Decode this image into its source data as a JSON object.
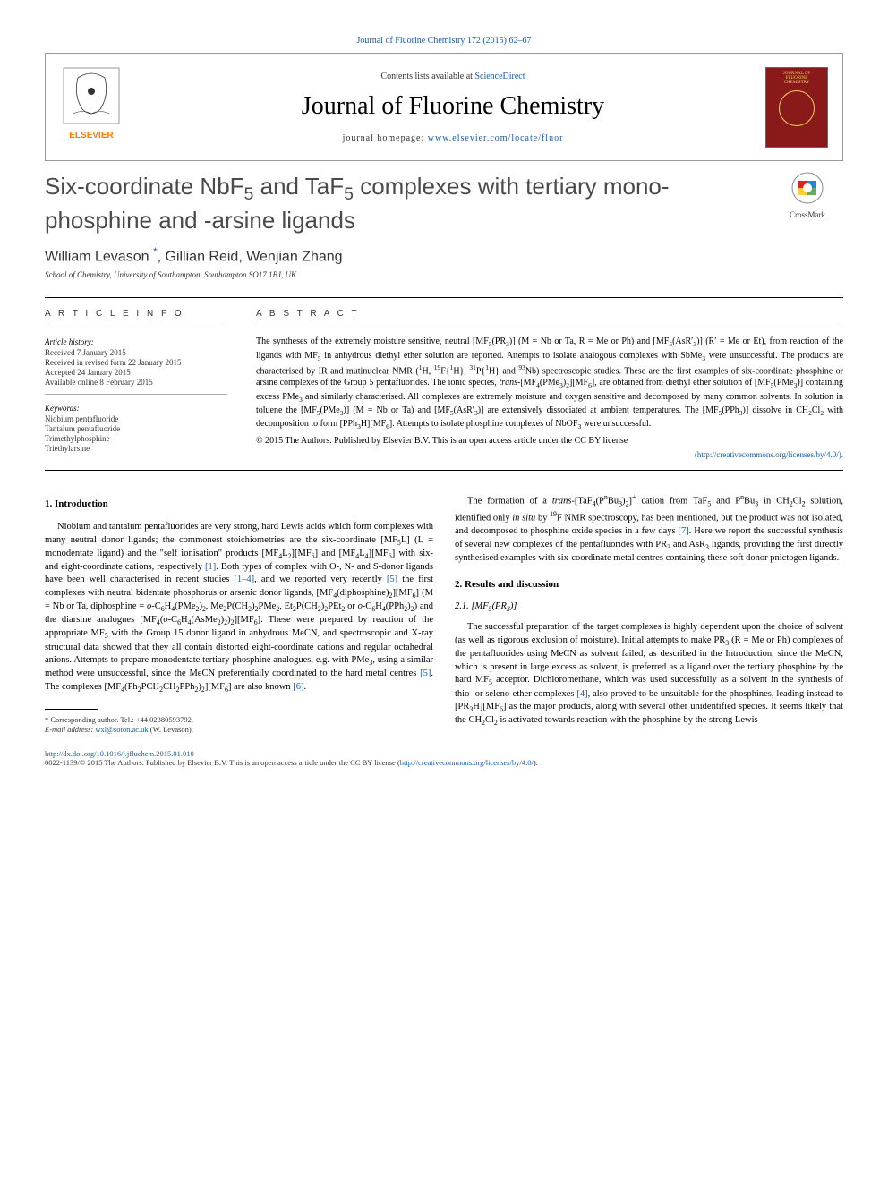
{
  "header": {
    "top_link": "Journal of Fluorine Chemistry 172 (2015) 62–67",
    "contents_line_prefix": "Contents lists available at ",
    "contents_line_link": "ScienceDirect",
    "journal_name": "Journal of Fluorine Chemistry",
    "homepage_prefix": "journal homepage: ",
    "homepage_url": "www.elsevier.com/locate/fluor",
    "publisher_name": "ELSEVIER",
    "cover_label_1": "JOURNAL OF",
    "cover_label_2": "FLUORINE",
    "cover_label_3": "CHEMISTRY"
  },
  "crossmark_label": "CrossMark",
  "title_html": "Six-coordinate NbF<sub>5</sub> and TaF<sub>5</sub> complexes with tertiary mono-phosphine and -arsine ligands",
  "authors_html": "William Levason <sup class=\"asterisk\">*</sup>, Gillian Reid, Wenjian Zhang",
  "affiliation": "School of Chemistry, University of Southampton, Southampton SO17 1BJ, UK",
  "article_info": {
    "heading": "A R T I C L E   I N F O",
    "history_label": "Article history:",
    "received": "Received 7 January 2015",
    "revised": "Received in revised form 22 January 2015",
    "accepted": "Accepted 24 January 2015",
    "online": "Available online 8 February 2015",
    "keywords_label": "Keywords:",
    "keywords": [
      "Niobium pentafluoride",
      "Tantalum pentafluoride",
      "Trimethylphosphine",
      "Triethylarsine"
    ]
  },
  "abstract": {
    "heading": "A B S T R A C T",
    "text_html": "The syntheses of the extremely moisture sensitive, neutral [MF<sub>5</sub>(PR<sub>3</sub>)] (M = Nb or Ta, R = Me or Ph) and [MF<sub>5</sub>(AsR′<sub>3</sub>)] (R′ = Me or Et), from reaction of the ligands with MF<sub>5</sub> in anhydrous diethyl ether solution are reported. Attempts to isolate analogous complexes with SbMe<sub>3</sub> were unsuccessful. The products are characterised by IR and mutinuclear NMR (<sup>1</sup>H, <sup>19</sup>F{<sup>1</sup>H}, <sup>31</sup>P{<sup>1</sup>H} and <sup>93</sup>Nb) spectroscopic studies. These are the first examples of six-coordinate phosphine or arsine complexes of the Group 5 pentafluorides. The ionic species, <i>trans</i>-[MF<sub>4</sub>(PMe<sub>3</sub>)<sub>2</sub>][MF<sub>6</sub>], are obtained from diethyl ether solution of [MF<sub>5</sub>(PMe<sub>3</sub>)] containing excess PMe<sub>3</sub> and similarly characterised. All complexes are extremely moisture and oxygen sensitive and decomposed by many common solvents. In solution in toluene the [MF<sub>5</sub>(PMe<sub>3</sub>)] (M = Nb or Ta) and [MF<sub>5</sub>(AsR′<sub>3</sub>)] are extensively dissociated at ambient temperatures. The [MF<sub>5</sub>(PPh<sub>3</sub>)] dissolve in CH<sub>2</sub>Cl<sub>2</sub> with decomposition to form [PPh<sub>3</sub>H][MF<sub>6</sub>]. Attempts to isolate phosphine complexes of NbOF<sub>3</sub> were unsuccessful.",
    "copyright": "© 2015 The Authors. Published by Elsevier B.V. This is an open access article under the CC BY license",
    "license_url": "(http://creativecommons.org/licenses/by/4.0/)."
  },
  "sections": {
    "intro_heading": "1. Introduction",
    "intro_p1_html": "Niobium and tantalum pentafluorides are very strong, hard Lewis acids which form complexes with many neutral donor ligands; the commonest stoichiometries are the six-coordinate [MF<sub>5</sub>L] (L = monodentate ligand) and the \"self ionisation\" products [MF<sub>4</sub>L<sub>2</sub>][MF<sub>6</sub>] and [MF<sub>4</sub>L<sub>4</sub>][MF<sub>6</sub>] with six- and eight-coordinate cations, respectively <span class=\"ref-link\">[1]</span>. Both types of complex with O-, N- and S-donor ligands have been well characterised in recent studies <span class=\"ref-link\">[1–4]</span>, and we reported very recently <span class=\"ref-link\">[5]</span> the first complexes with neutral bidentate phosphorus or arsenic donor ligands, [MF<sub>4</sub>(diphosphine)<sub>2</sub>][MF<sub>6</sub>] (M = Nb or Ta, diphosphine = <i>o</i>-C<sub>6</sub>H<sub>4</sub>(PMe<sub>2</sub>)<sub>2</sub>, Me<sub>2</sub>P(CH<sub>2</sub>)<sub>2</sub>PMe<sub>2</sub>, Et<sub>2</sub>P(CH<sub>2</sub>)<sub>2</sub>PEt<sub>2</sub> or <i>o</i>-C<sub>6</sub>H<sub>4</sub>(PPh<sub>2</sub>)<sub>2</sub>) and the diarsine analogues [MF<sub>4</sub>(<i>o</i>-C<sub>6</sub>H<sub>4</sub>(AsMe<sub>2</sub>)<sub>2</sub>)<sub>2</sub>][MF<sub>6</sub>]. These were prepared by reaction of the appropriate MF<sub>5</sub> with the Group 15 donor ligand in anhydrous MeCN, and spectroscopic and X-ray structural data showed that they all contain distorted eight-coordinate cations and regular octahedral anions. Attempts to prepare monodentate tertiary phosphine analogues, e.g. with PMe<sub>3</sub>, using a similar method were unsuccessful, since the MeCN preferentially coordinated to the hard metal centres <span class=\"ref-link\">[5]</span>. The complexes [MF<sub>4</sub>(Ph<sub>2</sub>PCH<sub>2</sub>CH<sub>2</sub>PPh<sub>2</sub>)<sub>2</sub>][MF<sub>6</sub>] are also known <span class=\"ref-link\">[6]</span>.",
    "intro_p2_html": "The formation of a <i>trans</i>-[TaF<sub>4</sub>(P<sup>n</sup>Bu<sub>3</sub>)<sub>2</sub>]<sup>+</sup> cation from TaF<sub>5</sub> and P<sup>n</sup>Bu<sub>3</sub> in CH<sub>2</sub>Cl<sub>2</sub> solution, identified only <i>in situ</i> by <sup>19</sup>F NMR spectroscopy, has been mentioned, but the product was not isolated, and decomposed to phosphine oxide species in a few days <span class=\"ref-link\">[7]</span>. Here we report the successful synthesis of several new complexes of the pentafluorides with PR<sub>3</sub> and AsR<sub>3</sub> ligands, providing the first directly synthesised examples with six-coordinate metal centres containing these soft donor pnictogen ligands.",
    "results_heading": "2. Results and discussion",
    "sub21_heading_html": "2.1. [MF<sub>5</sub>(PR<sub>3</sub>)]",
    "results_p1_html": "The successful preparation of the target complexes is highly dependent upon the choice of solvent (as well as rigorous exclusion of moisture). Initial attempts to make PR<sub>3</sub> (R = Me or Ph) complexes of the pentafluorides using MeCN as solvent failed, as described in the Introduction, since the MeCN, which is present in large excess as solvent, is preferred as a ligand over the tertiary phosphine by the hard MF<sub>5</sub> acceptor. Dichloromethane, which was used successfully as a solvent in the synthesis of thio- or seleno-ether complexes <span class=\"ref-link\">[4]</span>, also proved to be unsuitable for the phosphines, leading instead to [PR<sub>3</sub>H][MF<sub>6</sub>] as the major products, along with several other unidentified species. It seems likely that the CH<sub>2</sub>Cl<sub>2</sub> is activated towards reaction with the phosphine by the strong Lewis"
  },
  "footnote": {
    "corresponding": "* Corresponding author. Tel.: +44 02380593792.",
    "email_label": "E-mail address: ",
    "email": "wxl@soton.ac.uk",
    "email_suffix": " (W. Levason)."
  },
  "footer": {
    "doi": "http://dx.doi.org/10.1016/j.jfluchem.2015.01.010",
    "issn_line": "0022-1139/© 2015 The Authors. Published by Elsevier B.V. This is an open access article under the CC BY license (",
    "license_url": "http://creativecommons.org/licenses/by/4.0/",
    "license_suffix": ")."
  },
  "colors": {
    "link": "#1a5a9e",
    "elsevier_orange": "#ff7a00",
    "cover_bg": "#8a1a1a",
    "cover_text": "#f0d060",
    "title_gray": "#4a4a4a"
  }
}
